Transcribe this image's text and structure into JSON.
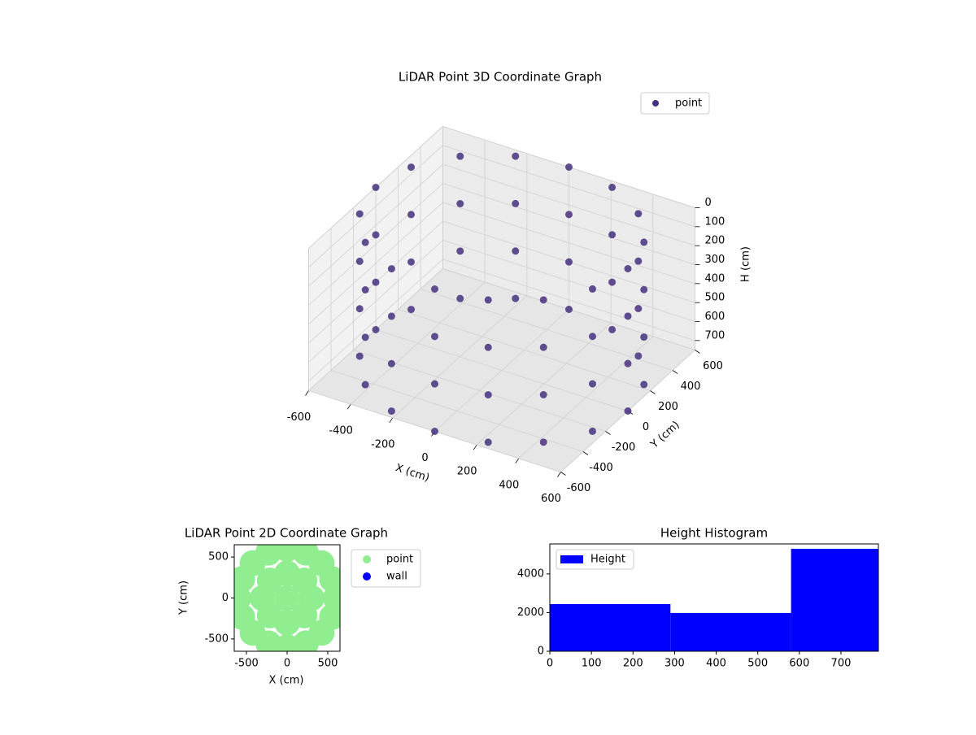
{
  "chart_data": [
    {
      "type": "scatter3d",
      "title": "LiDAR Point 3D Coordinate Graph",
      "xlabel": "X (cm)",
      "ylabel": "Y (cm)",
      "zlabel": "H (cm)",
      "xlim": [
        -600,
        600
      ],
      "ylim": [
        -600,
        600
      ],
      "zlim": [
        0,
        750
      ],
      "z_inverted": true,
      "xticks": [
        -600,
        -400,
        -200,
        0,
        200,
        400,
        600
      ],
      "yticks": [
        -600,
        -400,
        -200,
        0,
        200,
        400,
        600
      ],
      "zticks": [
        0,
        100,
        200,
        300,
        400,
        500,
        600,
        700
      ],
      "grid": true,
      "legend": "upper right",
      "series": [
        {
          "name": "point",
          "color": "#46307e",
          "x": [
            600,
            554,
            424,
            230,
            0,
            -230,
            -424,
            -554,
            -600,
            -554,
            -424,
            -230,
            0,
            230,
            424,
            554,
            600,
            554,
            424,
            230,
            0,
            -230,
            -424,
            -554,
            -600,
            -554,
            -424,
            -230,
            0,
            230,
            424,
            554,
            600,
            554,
            424,
            230,
            0,
            -230,
            -424,
            -554,
            -600,
            -554,
            -424,
            -230,
            0,
            230,
            424,
            554,
            600,
            554,
            424,
            230,
            0,
            -230,
            -424,
            -554,
            -600,
            -554,
            -424,
            -230,
            0,
            230,
            424,
            554
          ],
          "y": [
            0,
            230,
            424,
            554,
            600,
            554,
            424,
            230,
            0,
            -230,
            -424,
            -554,
            -600,
            -554,
            -424,
            -230,
            0,
            230,
            424,
            554,
            600,
            554,
            424,
            230,
            0,
            -230,
            -424,
            -554,
            -600,
            -554,
            -424,
            -230,
            0,
            230,
            424,
            554,
            600,
            554,
            424,
            230,
            0,
            -230,
            -424,
            -554,
            -600,
            -554,
            -424,
            -230,
            0,
            230,
            424,
            554,
            600,
            554,
            424,
            230,
            0,
            -230,
            -424,
            -554,
            -600,
            -554,
            -424,
            -230
          ],
          "z": [
            0,
            0,
            0,
            0,
            0,
            0,
            0,
            0,
            0,
            0,
            0,
            0,
            0,
            0,
            0,
            0,
            250,
            250,
            250,
            250,
            250,
            250,
            250,
            250,
            250,
            250,
            250,
            250,
            250,
            250,
            250,
            250,
            500,
            500,
            500,
            500,
            500,
            500,
            500,
            500,
            500,
            500,
            500,
            500,
            500,
            500,
            500,
            500,
            750,
            750,
            750,
            750,
            750,
            750,
            750,
            750,
            750,
            750,
            750,
            750,
            750,
            750,
            750,
            750
          ]
        }
      ]
    },
    {
      "type": "scatter",
      "title": "LiDAR Point 2D Coordinate Graph",
      "xlabel": "X (cm)",
      "ylabel": "Y (cm)",
      "xlim": [
        -650,
        650
      ],
      "ylim": [
        -650,
        650
      ],
      "xticks": [
        -500,
        0,
        500
      ],
      "yticks": [
        -500,
        0,
        500
      ],
      "legend": "outside right",
      "series": [
        {
          "name": "point",
          "color": "#90ee90",
          "x": [
            600,
            554,
            424,
            230,
            0,
            -230,
            -424,
            -554,
            -600,
            -554,
            -424,
            -230,
            0,
            230,
            424,
            554,
            300,
            212,
            0,
            -212,
            -300,
            -212,
            0,
            212,
            0
          ],
          "y": [
            0,
            230,
            424,
            554,
            600,
            554,
            424,
            230,
            0,
            -230,
            -424,
            -554,
            -600,
            -554,
            -424,
            -230,
            0,
            212,
            300,
            212,
            0,
            -212,
            -300,
            -212,
            0
          ]
        },
        {
          "name": "wall",
          "color": "#0000ff",
          "x": [
            600,
            -600
          ],
          "y": [
            0,
            0
          ]
        }
      ]
    },
    {
      "type": "histogram",
      "title": "Height Histogram",
      "bins": [
        0,
        290,
        580,
        790
      ],
      "xlim": [
        0,
        790
      ],
      "ylim": [
        0,
        5550
      ],
      "xticks": [
        0,
        100,
        200,
        300,
        400,
        500,
        600,
        700
      ],
      "yticks": [
        0,
        2000,
        4000
      ],
      "legend": "upper left",
      "series": [
        {
          "name": "Height",
          "color": "#0000ff",
          "values": [
            2440,
            1980,
            5300
          ]
        }
      ]
    }
  ]
}
